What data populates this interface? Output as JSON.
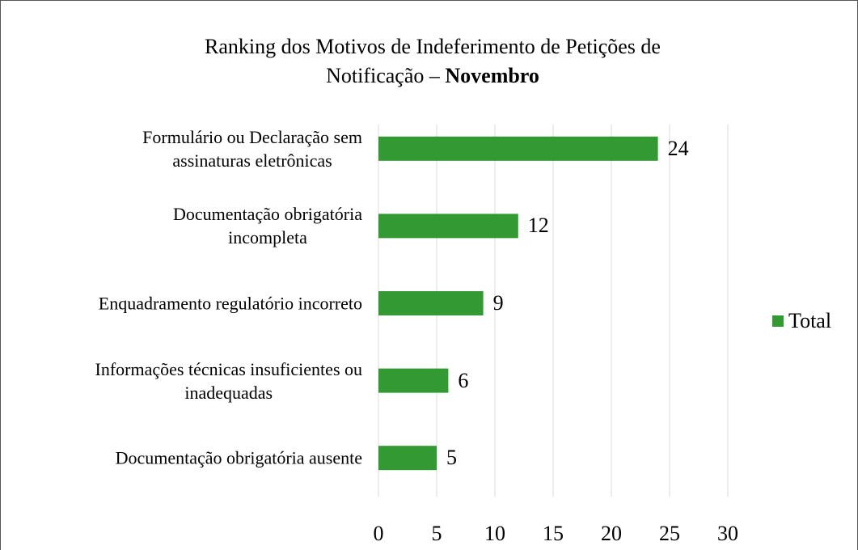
{
  "chart_data": {
    "type": "bar",
    "orientation": "horizontal",
    "title": {
      "text": "Ranking dos Motivos de Indeferimento de Petições de\nNotificação –",
      "bold": "Novembro"
    },
    "categories": [
      "Formulário ou Declaração sem\nassinaturas eletrônicas",
      "Documentação obrigatória\nincompleta",
      "Enquadramento regulatório incorreto",
      "Informações técnicas insuficientes ou\ninadequadas",
      "Documentação obrigatória ausente"
    ],
    "series": [
      {
        "name": "Total",
        "color": "#339933",
        "values": [
          24,
          12,
          9,
          6,
          5
        ]
      }
    ],
    "xlim": [
      0,
      30
    ],
    "xticks": [
      0,
      5,
      10,
      15,
      20,
      25,
      30
    ],
    "grid": true,
    "legend": "right"
  }
}
